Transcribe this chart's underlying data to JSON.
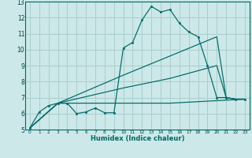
{
  "xlabel": "Humidex (Indice chaleur)",
  "bg_color": "#cce8e8",
  "grid_color": "#aacece",
  "line_color": "#006868",
  "xlim": [
    -0.5,
    23.5
  ],
  "ylim": [
    5,
    13
  ],
  "xticks": [
    0,
    1,
    2,
    3,
    4,
    5,
    6,
    7,
    8,
    9,
    10,
    11,
    12,
    13,
    14,
    15,
    16,
    17,
    18,
    19,
    20,
    21,
    22,
    23
  ],
  "yticks": [
    5,
    6,
    7,
    8,
    9,
    10,
    11,
    12,
    13
  ],
  "line1_x": [
    0,
    1,
    2,
    3,
    4,
    5,
    6,
    7,
    8,
    9,
    10,
    11,
    12,
    13,
    14,
    15,
    16,
    17,
    18,
    19,
    20,
    21,
    22,
    23
  ],
  "line1_y": [
    5.1,
    6.1,
    6.5,
    6.65,
    6.65,
    6.0,
    6.1,
    6.35,
    6.05,
    6.05,
    10.1,
    10.45,
    11.85,
    12.7,
    12.35,
    12.5,
    11.65,
    11.1,
    10.8,
    9.0,
    7.0,
    7.0,
    6.9,
    6.9
  ],
  "line2_x": [
    0,
    3,
    10,
    15,
    20,
    21,
    22,
    23
  ],
  "line2_y": [
    5.1,
    6.65,
    8.4,
    9.6,
    10.8,
    7.0,
    6.9,
    6.9
  ],
  "line3_x": [
    0,
    3,
    10,
    15,
    20,
    21,
    22,
    23
  ],
  "line3_y": [
    5.1,
    6.65,
    7.6,
    8.2,
    9.0,
    7.0,
    6.9,
    6.9
  ],
  "line4_x": [
    0,
    3,
    15,
    23
  ],
  "line4_y": [
    5.1,
    6.65,
    6.65,
    6.9
  ]
}
